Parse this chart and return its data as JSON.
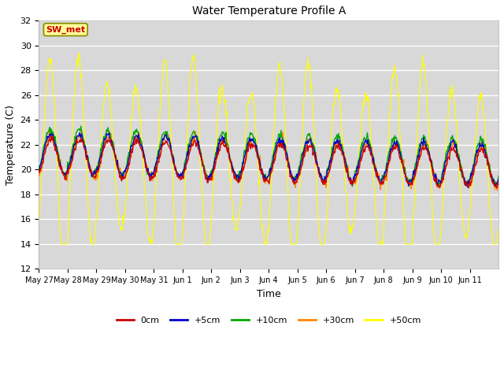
{
  "title": "Water Temperature Profile A",
  "xlabel": "Time",
  "ylabel": "Temperature (C)",
  "ylim": [
    12,
    32
  ],
  "yticks": [
    12,
    14,
    16,
    18,
    20,
    22,
    24,
    26,
    28,
    30,
    32
  ],
  "bg_color": "#d8d8d8",
  "annotation_text": "SW_met",
  "annotation_bg": "#ffff99",
  "annotation_border": "#888800",
  "annotation_fg": "#cc0000",
  "series_colors": {
    "0cm": "#cc0000",
    "+5cm": "#0000cc",
    "+10cm": "#00aa00",
    "+30cm": "#ff8800",
    "+50cm": "#ffff00"
  },
  "legend_labels": [
    "0cm",
    "+5cm",
    "+10cm",
    "+30cm",
    "+50cm"
  ],
  "legend_colors": [
    "#cc0000",
    "#0000cc",
    "#00aa00",
    "#ff8800",
    "#ffff00"
  ],
  "x_tick_labels": [
    "May 27",
    "May 28",
    "May 29",
    "May 30",
    "May 31",
    "Jun 1",
    "Jun 2",
    "Jun 3",
    "Jun 4",
    "Jun 5",
    "Jun 6",
    "Jun 7",
    "Jun 8",
    "Jun 9",
    "Jun 10",
    "Jun 11"
  ],
  "n_days": 16,
  "pts_per_day": 48,
  "base_temp": 21.0,
  "trend": -0.055
}
